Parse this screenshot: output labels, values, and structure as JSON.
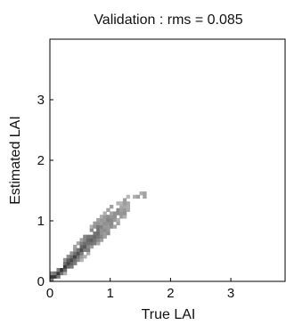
{
  "chart_data": {
    "type": "heatmap",
    "title": "Validation : rms = 0.085",
    "xlabel": "True LAI",
    "ylabel": "Estimated LAI",
    "xlim": [
      0,
      3.9
    ],
    "ylim": [
      0,
      4.0
    ],
    "xticks": [
      {
        "value": 0,
        "label": "0"
      },
      {
        "value": 1,
        "label": "1"
      },
      {
        "value": 2,
        "label": "2"
      },
      {
        "value": 3,
        "label": "3"
      }
    ],
    "yticks": [
      {
        "value": 0,
        "label": "0"
      },
      {
        "value": 1,
        "label": "1"
      },
      {
        "value": 2,
        "label": "2"
      },
      {
        "value": 3,
        "label": "3"
      }
    ],
    "grid": false,
    "legend": "none",
    "colormap": "gray",
    "density_band": [
      {
        "x": 0.05,
        "y": 0.05,
        "half_width": 0.05
      },
      {
        "x": 0.3,
        "y": 0.3,
        "half_width": 0.09
      },
      {
        "x": 0.6,
        "y": 0.62,
        "half_width": 0.13
      },
      {
        "x": 0.9,
        "y": 0.92,
        "half_width": 0.14
      },
      {
        "x": 1.15,
        "y": 1.15,
        "half_width": 0.12
      },
      {
        "x": 1.35,
        "y": 1.35,
        "half_width": 0.08
      },
      {
        "x": 1.55,
        "y": 1.42,
        "half_width": 0.04
      }
    ]
  }
}
